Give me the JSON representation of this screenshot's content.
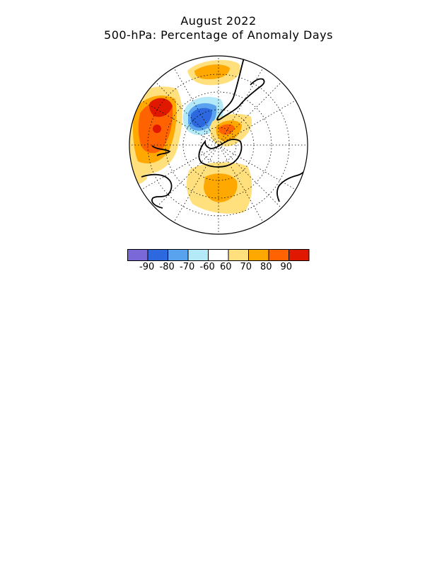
{
  "title": "August 2022",
  "subtitle": "500-hPa: Percentage of Anomaly Days",
  "colorbar": {
    "bins": [
      "#7b68d8",
      "#2d68de",
      "#58a2ee",
      "#b4eaf8",
      "#ffffff",
      "#ffe07c",
      "#ffa800",
      "#ff6200",
      "#e01800"
    ],
    "labels": [
      "-90",
      "-80",
      "-70",
      "-60",
      "60",
      "70",
      "80",
      "90"
    ]
  },
  "colors": {
    "warm_light": "#ffe07c",
    "warm_orange": "#ffa800",
    "warm_dark": "#ff6200",
    "warm_red": "#e01800",
    "cool_light": "#b4eaf8",
    "cool_mid": "#58a2ee",
    "cool_dark": "#2d68de",
    "cool_deep": "#7b68d8"
  }
}
